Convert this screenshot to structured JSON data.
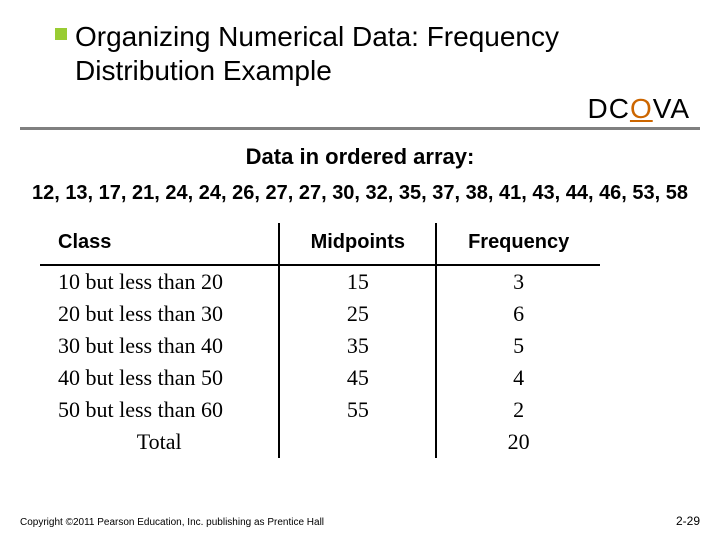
{
  "title_line1": "Organizing Numerical Data: Frequency",
  "title_line2": "Distribution Example",
  "accent_color": "#99cc33",
  "dcova": {
    "pre": "DC",
    "highlight": "O",
    "post": "VA",
    "highlight_color": "#cc6600"
  },
  "subtitle": "Data in ordered array:",
  "data_array": "12, 13, 17, 21, 24, 24, 26, 27, 27, 30, 32, 35, 37, 38, 41, 43, 44, 46, 53, 58",
  "table": {
    "columns": [
      "Class",
      "Midpoints",
      "Frequency"
    ],
    "rows": [
      {
        "class": "10 but less than 20",
        "midpoint": "15",
        "freq": "3"
      },
      {
        "class": "20 but less than 30",
        "midpoint": "25",
        "freq": "6"
      },
      {
        "class": "30 but less than 40",
        "midpoint": "35",
        "freq": "5"
      },
      {
        "class": "40 but less than 50",
        "midpoint": "45",
        "freq": "4"
      },
      {
        "class": "50 but less than 60",
        "midpoint": "55",
        "freq": "2"
      }
    ],
    "total_label": "Total",
    "total_freq": "20"
  },
  "footer": "Copyright ©2011 Pearson Education, Inc. publishing as Prentice Hall",
  "page_number": "2-29"
}
